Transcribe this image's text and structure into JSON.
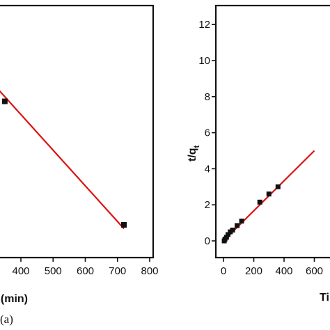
{
  "chart_data": [
    {
      "type": "scatter",
      "title": "",
      "xlabel": "Time (min)",
      "ylabel": "",
      "xlim": [
        0,
        800
      ],
      "x_ticks": [
        "400",
        "500",
        "600",
        "700",
        "800"
      ],
      "grid": false,
      "series": [
        {
          "kind": "points",
          "color": "#111111",
          "x": [
            350,
            720
          ],
          "y": [
            0.62,
            0.13
          ]
        },
        {
          "kind": "fit-line",
          "color": "#dd1111",
          "x": [
            250,
            720
          ],
          "y": [
            0.78,
            0.115
          ]
        }
      ],
      "caption": "(a)"
    },
    {
      "type": "scatter",
      "title": "",
      "xlabel": "Time (min)",
      "ylabel": "t/q",
      "ylabel_subscript": "t",
      "xlim": [
        0,
        800
      ],
      "ylim": [
        -1,
        13
      ],
      "x_ticks": [
        "0",
        "200",
        "400",
        "600"
      ],
      "y_ticks": [
        "0",
        "2",
        "4",
        "6",
        "8",
        "10",
        "12"
      ],
      "grid": false,
      "series": [
        {
          "kind": "points",
          "color": "#111111",
          "x": [
            5,
            10,
            20,
            30,
            45,
            60,
            90,
            120,
            240,
            300,
            360
          ],
          "y": [
            0.0,
            0.1,
            0.2,
            0.35,
            0.5,
            0.6,
            0.85,
            1.1,
            2.15,
            2.6,
            3.0
          ]
        },
        {
          "kind": "fit-line",
          "color": "#dd1111",
          "x": [
            0,
            600
          ],
          "y": [
            0.0,
            5.0
          ]
        }
      ]
    }
  ]
}
